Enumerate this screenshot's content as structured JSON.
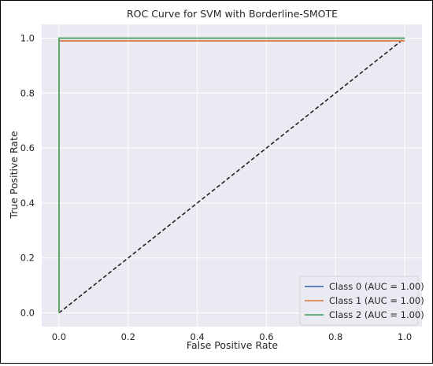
{
  "chart_data": {
    "type": "line",
    "title": "ROC Curve for SVM with Borderline-SMOTE",
    "xlabel": "False Positive Rate",
    "ylabel": "True Positive Rate",
    "xlim": [
      -0.05,
      1.05
    ],
    "ylim": [
      -0.05,
      1.05
    ],
    "xticks": [
      0.0,
      0.2,
      0.4,
      0.6,
      0.8,
      1.0
    ],
    "xtick_labels": [
      "0.0",
      "0.2",
      "0.4",
      "0.6",
      "0.8",
      "1.0"
    ],
    "yticks": [
      0.0,
      0.2,
      0.4,
      0.6,
      0.8,
      1.0
    ],
    "ytick_labels": [
      "0.0",
      "0.2",
      "0.4",
      "0.6",
      "0.8",
      "1.0"
    ],
    "grid": true,
    "background": "#EAEAF2",
    "legend_position": "lower-right",
    "series": [
      {
        "name": "Class 0 (AUC = 1.00)",
        "color": "#4C72B0",
        "x": [
          0.0,
          0.0,
          0.0,
          1.0
        ],
        "y": [
          0.0,
          0.94,
          1.0,
          1.0
        ]
      },
      {
        "name": "Class 1 (AUC = 1.00)",
        "color": "#DD8452",
        "x": [
          0.0,
          0.0,
          0.003,
          1.0
        ],
        "y": [
          0.0,
          0.99,
          0.99,
          0.99
        ]
      },
      {
        "name": "Class 2 (AUC = 1.00)",
        "color": "#55A868",
        "x": [
          0.0,
          0.0,
          0.003,
          1.0
        ],
        "y": [
          0.0,
          1.0,
          1.0,
          1.0
        ]
      }
    ],
    "reference_line": {
      "x": [
        0.0,
        1.0
      ],
      "y": [
        0.0,
        1.0
      ],
      "color": "#222222",
      "style": "dashed"
    }
  }
}
